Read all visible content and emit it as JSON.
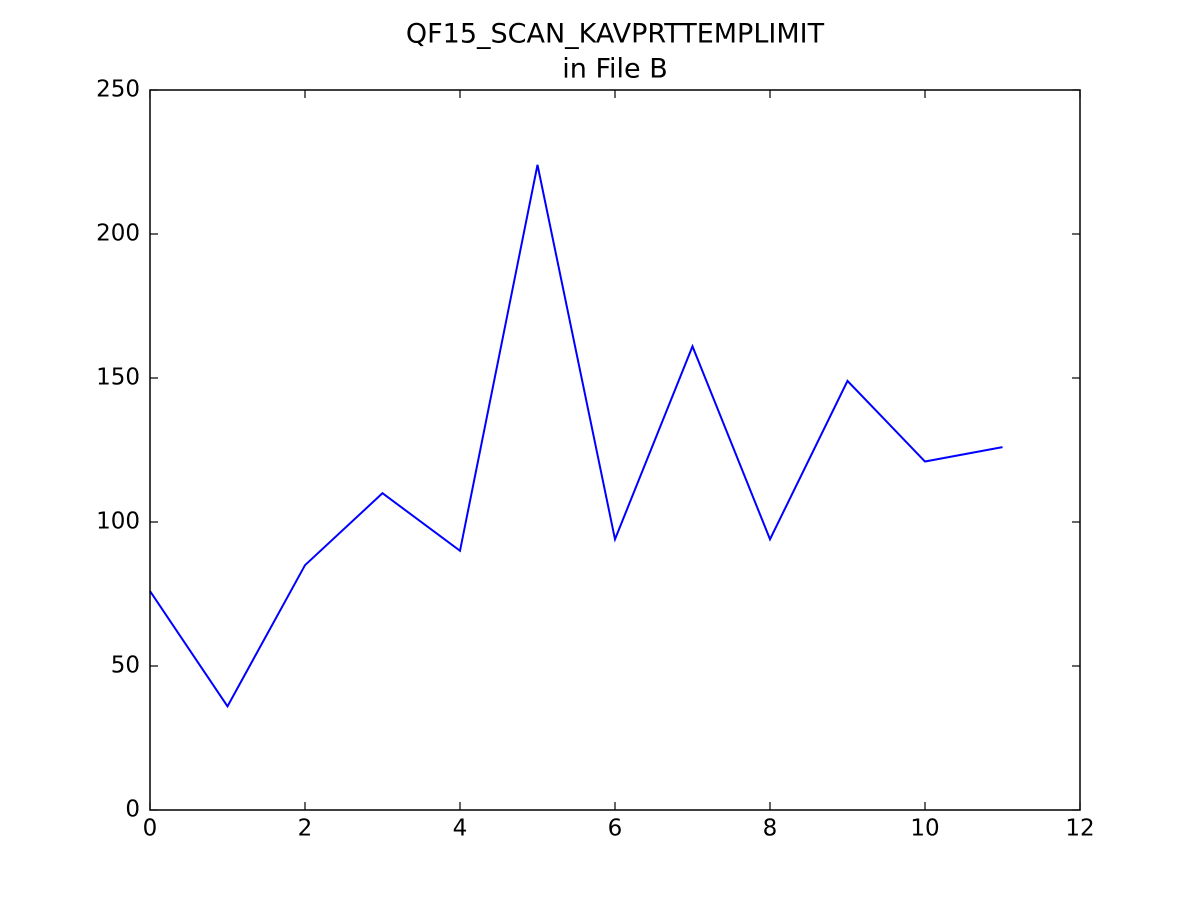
{
  "chart_data": {
    "type": "line",
    "title_lines": [
      "QF15_SCAN_KAVPRTTEMPLIMIT",
      "in File B"
    ],
    "x": [
      0,
      1,
      2,
      3,
      4,
      5,
      6,
      7,
      8,
      9,
      10,
      11
    ],
    "series": [
      {
        "color": "#0000ff",
        "values": [
          76,
          36,
          85,
          110,
          90,
          224,
          94,
          161,
          94,
          149,
          121,
          126
        ]
      }
    ],
    "xlim": [
      0,
      12
    ],
    "xticks": [
      0,
      2,
      4,
      6,
      8,
      10,
      12
    ],
    "ylim": [
      0,
      250
    ],
    "yticks": [
      0,
      50,
      100,
      150,
      200,
      250
    ],
    "grid": false
  }
}
